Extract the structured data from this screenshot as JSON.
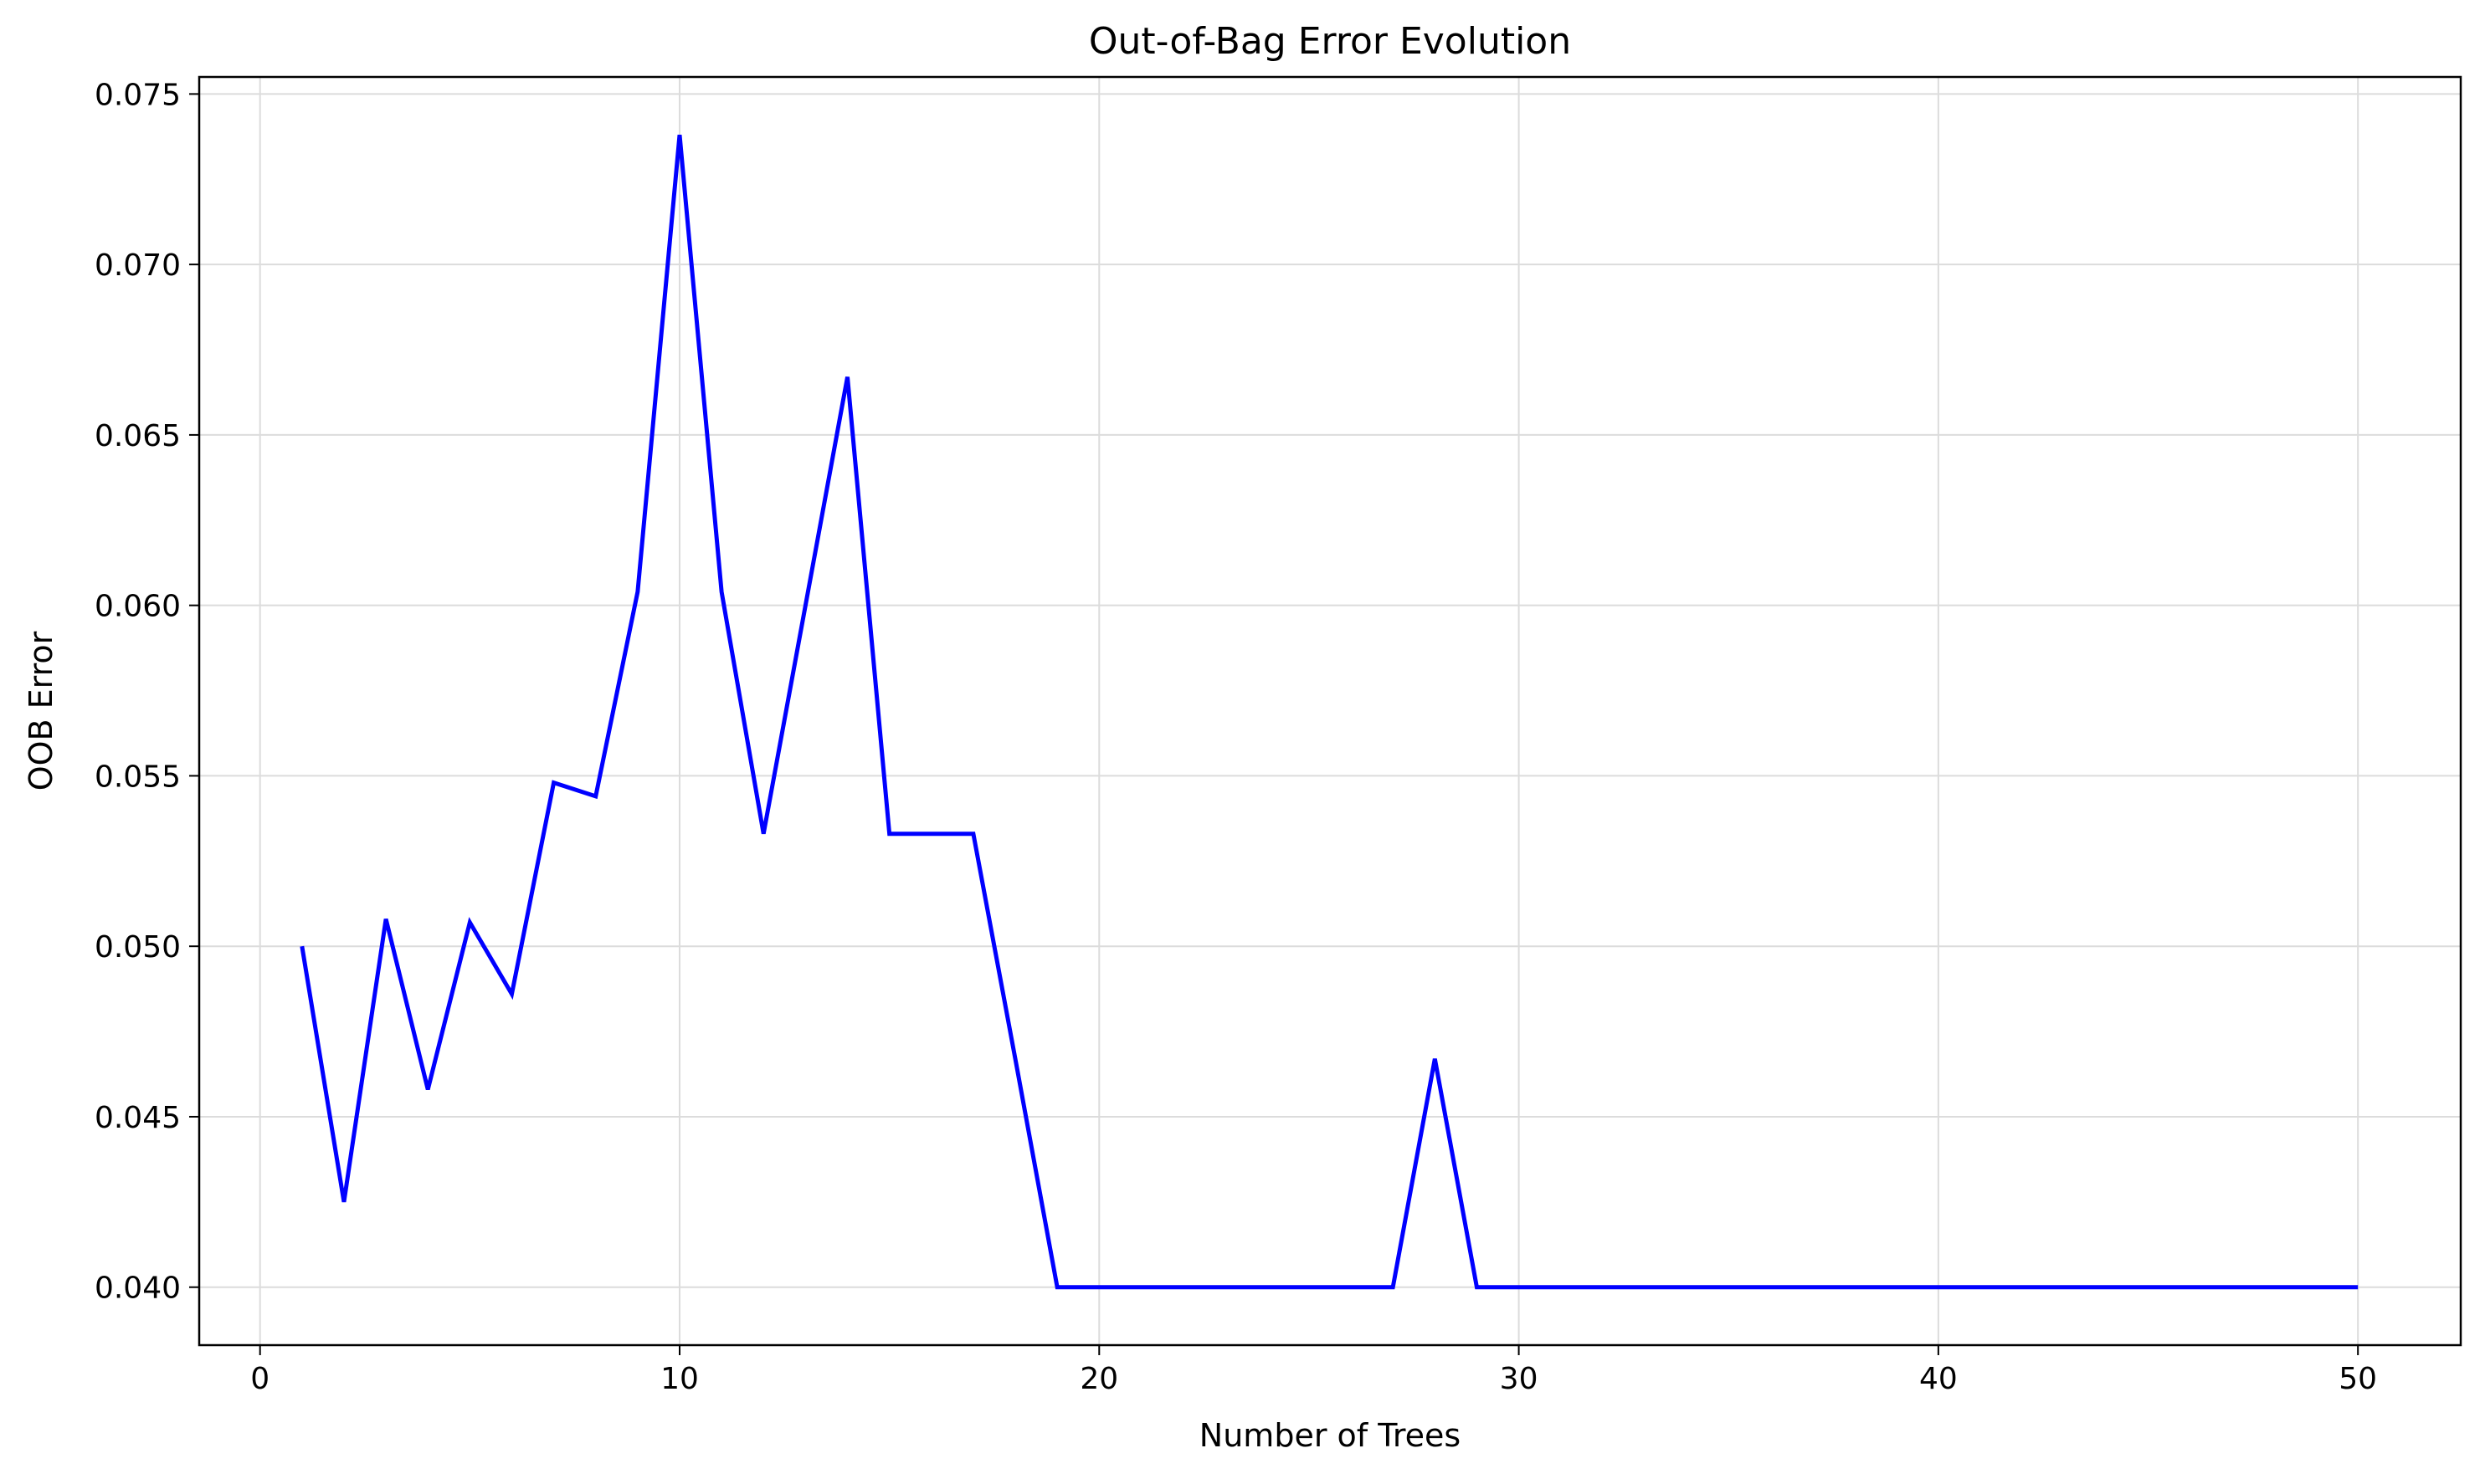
{
  "chart_data": {
    "type": "line",
    "title": "Out-of-Bag Error Evolution",
    "xlabel": "Number of Trees",
    "ylabel": "OOB Error",
    "xlim": [
      -1.45,
      52.45
    ],
    "ylim": [
      0.0383,
      0.0755
    ],
    "xticks": [
      0,
      10,
      20,
      30,
      40,
      50
    ],
    "xtick_labels": [
      "0",
      "10",
      "20",
      "30",
      "40",
      "50"
    ],
    "yticks": [
      0.04,
      0.045,
      0.05,
      0.055,
      0.06,
      0.065,
      0.07,
      0.075
    ],
    "ytick_labels": [
      "0.040",
      "0.045",
      "0.050",
      "0.055",
      "0.060",
      "0.065",
      "0.070",
      "0.075"
    ],
    "grid": true,
    "legend": "none",
    "series": [
      {
        "color": "#0000ff",
        "x": [
          1,
          2,
          3,
          4,
          5,
          6,
          7,
          8,
          9,
          10,
          11,
          12,
          13,
          14,
          15,
          16,
          17,
          18,
          19,
          20,
          21,
          22,
          23,
          24,
          25,
          26,
          27,
          28,
          29,
          30,
          31,
          32,
          33,
          34,
          35,
          36,
          37,
          38,
          39,
          40,
          41,
          42,
          43,
          44,
          45,
          46,
          47,
          48,
          49,
          50
        ],
        "y": [
          0.05,
          0.0425,
          0.0508,
          0.0458,
          0.0507,
          0.0486,
          0.0548,
          0.0544,
          0.0604,
          0.0738,
          0.0604,
          0.0533,
          0.06,
          0.0667,
          0.0533,
          0.0533,
          0.0533,
          0.0467,
          0.04,
          0.04,
          0.04,
          0.04,
          0.04,
          0.04,
          0.04,
          0.04,
          0.04,
          0.0467,
          0.04,
          0.04,
          0.04,
          0.04,
          0.04,
          0.04,
          0.04,
          0.04,
          0.04,
          0.04,
          0.04,
          0.04,
          0.04,
          0.04,
          0.04,
          0.04,
          0.04,
          0.04,
          0.04,
          0.04,
          0.04,
          0.04
        ]
      }
    ]
  }
}
